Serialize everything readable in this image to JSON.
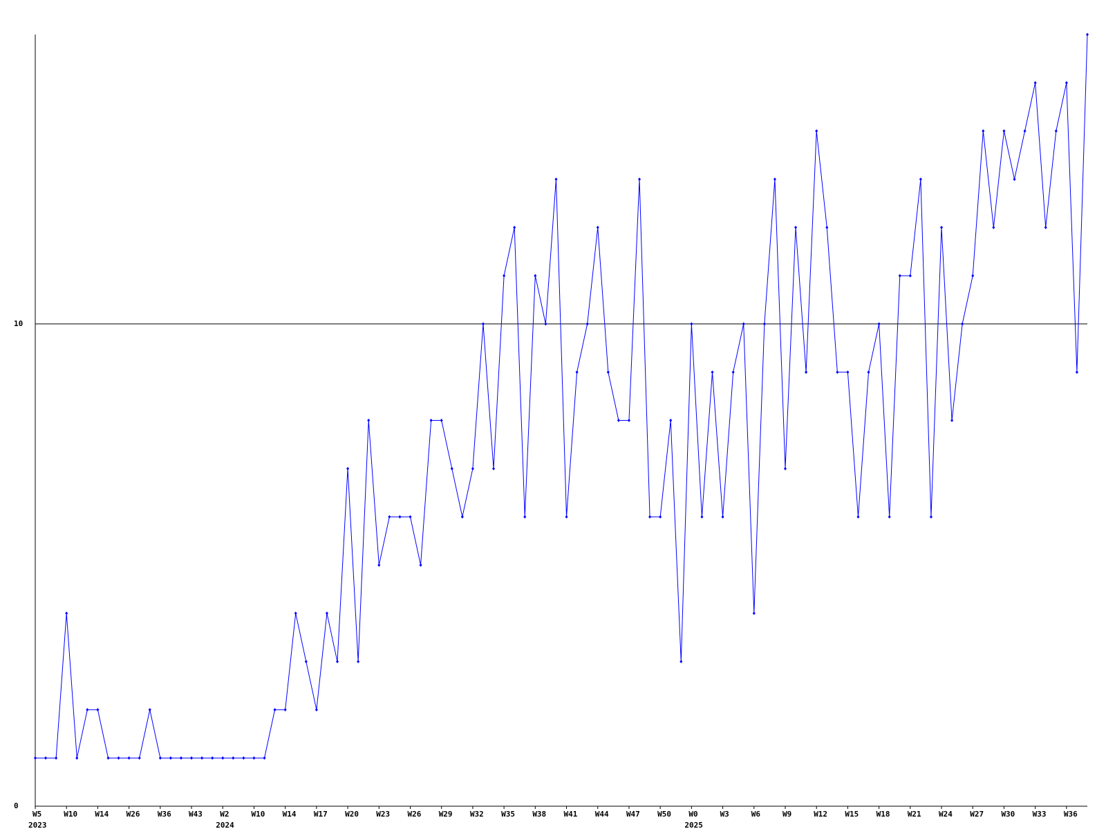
{
  "chart_data": {
    "type": "line",
    "categories": [
      "W5",
      null,
      null,
      "W10",
      null,
      null,
      "W14",
      null,
      null,
      "W26",
      null,
      null,
      "W36",
      null,
      null,
      "W43",
      null,
      null,
      "W2",
      null,
      null,
      "W10",
      null,
      null,
      "W14",
      null,
      null,
      "W17",
      null,
      null,
      "W20",
      null,
      null,
      "W23",
      null,
      null,
      "W26",
      null,
      null,
      "W29",
      null,
      null,
      "W32",
      null,
      null,
      "W35",
      null,
      null,
      "W38",
      null,
      null,
      "W41",
      null,
      null,
      "W44",
      null,
      null,
      "W47",
      null,
      null,
      "W50",
      null,
      null,
      "W0",
      null,
      null,
      "W3",
      null,
      null,
      "W6",
      null,
      null,
      "W9",
      null,
      null,
      "W12",
      null,
      null,
      "W15",
      null,
      null,
      "W18",
      null,
      null,
      "W21",
      null,
      null,
      "W24",
      null,
      null,
      "W27",
      null,
      null,
      "W30",
      null,
      null,
      "W33",
      null,
      null,
      "W36",
      null,
      null
    ],
    "sublabels": [
      "2023",
      null,
      null,
      null,
      null,
      null,
      null,
      null,
      null,
      null,
      null,
      null,
      null,
      null,
      null,
      null,
      null,
      null,
      "2024",
      null,
      null,
      null,
      null,
      null,
      null,
      null,
      null,
      null,
      null,
      null,
      null,
      null,
      null,
      null,
      null,
      null,
      null,
      null,
      null,
      null,
      null,
      null,
      null,
      null,
      null,
      null,
      null,
      null,
      null,
      null,
      null,
      null,
      null,
      null,
      null,
      null,
      null,
      null,
      null,
      null,
      null,
      null,
      null,
      "2025",
      null,
      null,
      null,
      null,
      null,
      null,
      null,
      null,
      null,
      null,
      null,
      null,
      null,
      null,
      null,
      null,
      null,
      null,
      null,
      null,
      null,
      null,
      null,
      null,
      null,
      null,
      null,
      null,
      null,
      null,
      null,
      null,
      null,
      null,
      null,
      null
    ],
    "series": [
      {
        "color": "#0000ff",
        "values": [
          1,
          1,
          1,
          4,
          1,
          2,
          2,
          1,
          1,
          1,
          1,
          2,
          1,
          1,
          1,
          1,
          1,
          1,
          1,
          1,
          1,
          1,
          1,
          2,
          2,
          4,
          3,
          2,
          4,
          3,
          7,
          3,
          8,
          5,
          6,
          6,
          6,
          5,
          8,
          8,
          7,
          6,
          7,
          10,
          7,
          11,
          12,
          6,
          11,
          10,
          13,
          6,
          9,
          10,
          12,
          9,
          8,
          8,
          13,
          6,
          6,
          8,
          3,
          10,
          6,
          9,
          6,
          9,
          10,
          4,
          10,
          13,
          7,
          12,
          9,
          14,
          12,
          9,
          9,
          6,
          9,
          10,
          6,
          11,
          11,
          13,
          6,
          12,
          8,
          10,
          11,
          14,
          12,
          14,
          13,
          14,
          15,
          12,
          14,
          15,
          9,
          16
        ]
      }
    ],
    "ylim": [
      0,
      16
    ],
    "yticks": [
      0,
      10
    ],
    "grid": true
  }
}
